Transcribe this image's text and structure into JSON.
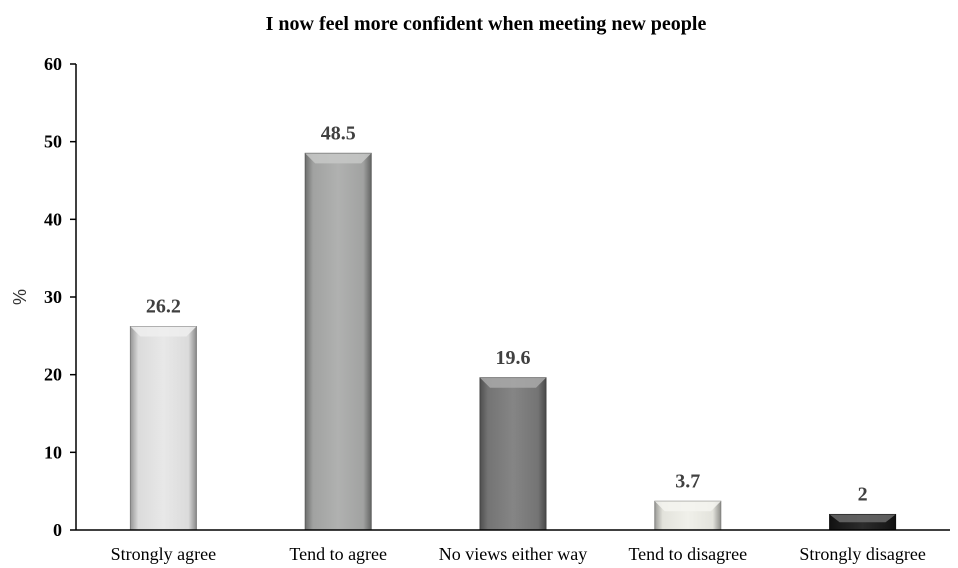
{
  "chart_data": {
    "type": "bar",
    "title": "I now feel more confident when meeting new people",
    "xlabel": "",
    "ylabel": "%",
    "ylim": [
      0,
      60
    ],
    "yticks": [
      0,
      10,
      20,
      30,
      40,
      50,
      60
    ],
    "categories": [
      "Strongly agree",
      "Tend to agree",
      "No views either way",
      "Tend to disagree",
      "Strongly disagree"
    ],
    "values": [
      26.2,
      48.5,
      19.6,
      3.7,
      2
    ],
    "data_labels": [
      "26.2",
      "48.5",
      "19.6",
      "3.7",
      "2"
    ],
    "bar_colors": [
      "#e6e6e6",
      "#a9aaa9",
      "#7a7a7a",
      "#efefe8",
      "#1a1a1a"
    ],
    "grid": false,
    "legend": "none"
  }
}
